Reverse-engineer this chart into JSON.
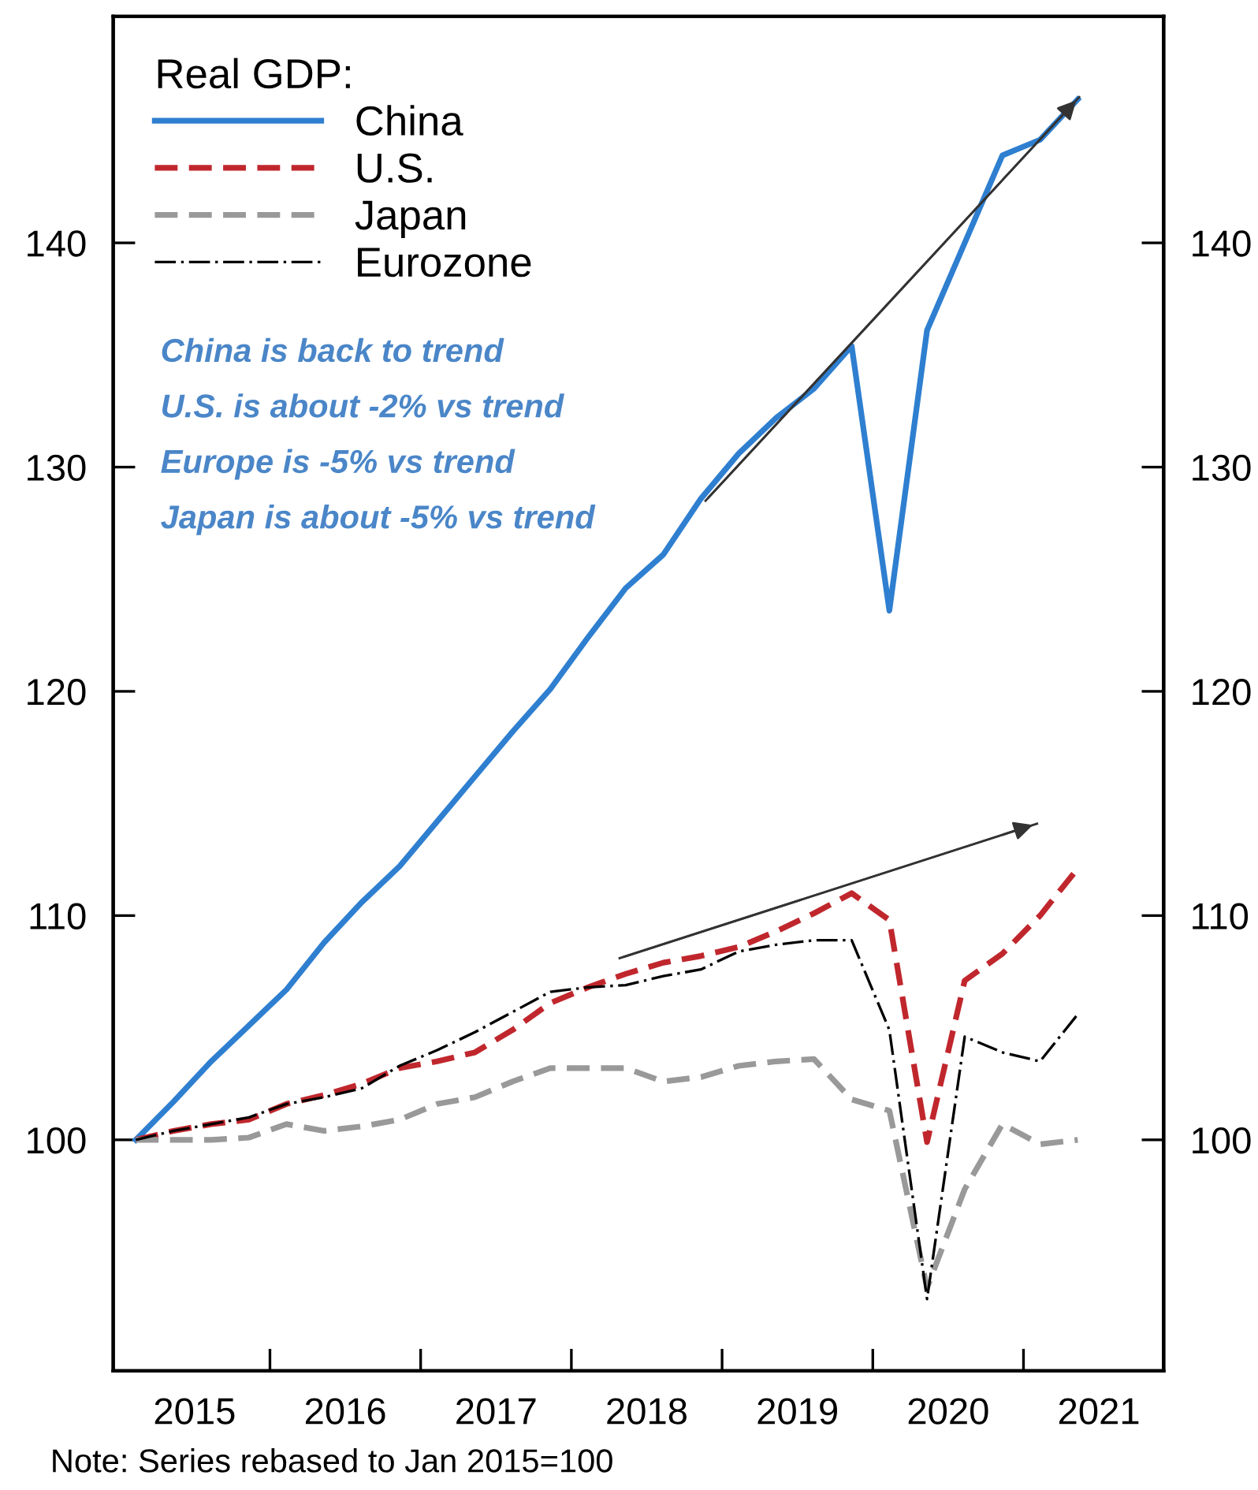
{
  "chart_data": {
    "type": "line",
    "x": [
      2015.11,
      2015.36,
      2015.61,
      2015.86,
      2016.11,
      2016.36,
      2016.61,
      2016.86,
      2017.11,
      2017.36,
      2017.61,
      2017.86,
      2018.11,
      2018.36,
      2018.61,
      2018.86,
      2019.11,
      2019.36,
      2019.61,
      2019.86,
      2020.11,
      2020.36,
      2020.61,
      2020.86,
      2021.11,
      2021.36
    ],
    "series": [
      {
        "name": "China",
        "color": "#2f7fd0",
        "line_style": "solid",
        "values": [
          100,
          101.7,
          103.5,
          105.1,
          106.7,
          108.8,
          110.6,
          112.2,
          114.2,
          116.2,
          118.2,
          120.1,
          122.4,
          124.6,
          126.1,
          128.6,
          130.6,
          132.2,
          133.5,
          135.4,
          123.6,
          136.1,
          140.0,
          143.9,
          144.6,
          146.4
        ]
      },
      {
        "name": "U.S.",
        "color": "#c0272d",
        "line_style": "dashed",
        "values": [
          100,
          100.4,
          100.7,
          100.9,
          101.6,
          102.0,
          102.5,
          103.2,
          103.5,
          103.9,
          104.9,
          106.1,
          106.8,
          107.4,
          107.9,
          108.2,
          108.6,
          109.3,
          110.1,
          111.0,
          109.8,
          99.9,
          107.1,
          108.3,
          110.0,
          112.1
        ]
      },
      {
        "name": "Japan",
        "color": "#999999",
        "line_style": "dashed",
        "values": [
          100,
          100,
          100,
          100.1,
          100.7,
          100.4,
          100.6,
          100.9,
          101.6,
          101.9,
          102.6,
          103.2,
          103.2,
          103.2,
          102.6,
          102.8,
          103.3,
          103.5,
          103.6,
          101.8,
          101.3,
          93.4,
          97.8,
          100.7,
          99.8,
          100.0
        ]
      },
      {
        "name": "Eurozone",
        "color": "#000000",
        "line_style": "dashed",
        "values": [
          100,
          100.4,
          100.7,
          101.0,
          101.6,
          101.9,
          102.3,
          103.3,
          104.0,
          104.8,
          105.7,
          106.6,
          106.8,
          106.9,
          107.3,
          107.6,
          108.4,
          108.7,
          108.9,
          108.9,
          104.9,
          92.9,
          104.6,
          103.9,
          103.5,
          105.6
        ]
      },
      {
        "type": "line",
        "color": "#333333",
        "line_style": "solid",
        "x": [
          2018.89,
          2021.37
        ],
        "values": [
          128.5,
          146.5
        ]
      },
      {
        "type": "line",
        "color": "#333333",
        "line_style": "solid",
        "x": [
          2018.32,
          2021.09
        ],
        "values": [
          108.1,
          114.1
        ]
      }
    ],
    "xlim": [
      2014.96,
      2021.93
    ],
    "xticks": [
      {
        "value": 2015.5,
        "label": "2015"
      },
      {
        "value": 2016,
        "label": null
      },
      {
        "value": 2016.5,
        "label": "2016"
      },
      {
        "value": 2017,
        "label": null
      },
      {
        "value": 2017.5,
        "label": "2017"
      },
      {
        "value": 2018,
        "label": null
      },
      {
        "value": 2018.5,
        "label": "2018"
      },
      {
        "value": 2019,
        "label": null
      },
      {
        "value": 2019.5,
        "label": "2019"
      },
      {
        "value": 2020,
        "label": null
      },
      {
        "value": 2020.5,
        "label": "2020"
      },
      {
        "value": 2021,
        "label": null
      },
      {
        "value": 2021.5,
        "label": "2021"
      }
    ],
    "ylim": [
      89.7,
      150.1
    ],
    "yticks": [
      100,
      110,
      120,
      130,
      140
    ],
    "y2lim": [
      89.7,
      150.1
    ],
    "y2ticks": [
      100,
      110,
      120,
      130,
      140
    ],
    "legend": "top left",
    "legend_title": "Real GDP:",
    "grid": false,
    "annotations": [
      "China is back to trend",
      "U.S. is about -2% vs trend",
      "Europe is -5% vs trend",
      "Japan is about -5% vs trend",
      "Note: Series rebased to Jan 2015=100"
    ]
  }
}
